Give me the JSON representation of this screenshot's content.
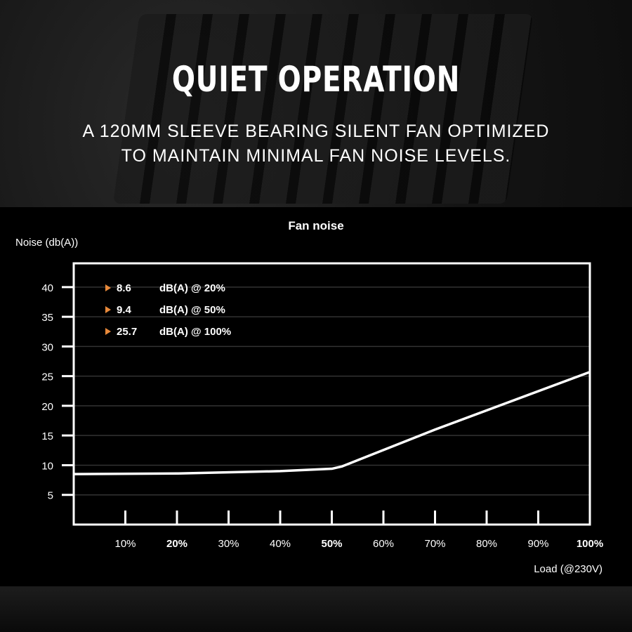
{
  "hero": {
    "title": "QUIET OPERATION",
    "subtitle_line1": "A 120MM SLEEVE BEARING SILENT FAN OPTIMIZED",
    "subtitle_line2": "TO MAINTAIN MINIMAL FAN NOISE LEVELS."
  },
  "chart_data": {
    "type": "line",
    "title": "Fan noise",
    "ylabel": "Noise (db(A))",
    "xlabel": "Load (@230V)",
    "xlim": [
      0,
      100
    ],
    "ylim": [
      0,
      44
    ],
    "grid": true,
    "x_ticks": [
      {
        "value": 10,
        "label": "10%",
        "bold": false
      },
      {
        "value": 20,
        "label": "20%",
        "bold": true
      },
      {
        "value": 30,
        "label": "30%",
        "bold": false
      },
      {
        "value": 40,
        "label": "40%",
        "bold": false
      },
      {
        "value": 50,
        "label": "50%",
        "bold": true
      },
      {
        "value": 60,
        "label": "60%",
        "bold": false
      },
      {
        "value": 70,
        "label": "70%",
        "bold": false
      },
      {
        "value": 80,
        "label": "80%",
        "bold": false
      },
      {
        "value": 90,
        "label": "90%",
        "bold": false
      },
      {
        "value": 100,
        "label": "100%",
        "bold": true
      }
    ],
    "y_ticks": [
      {
        "value": 5,
        "label": "5"
      },
      {
        "value": 10,
        "label": "10"
      },
      {
        "value": 15,
        "label": "15"
      },
      {
        "value": 20,
        "label": "20"
      },
      {
        "value": 25,
        "label": "25"
      },
      {
        "value": 30,
        "label": "30"
      },
      {
        "value": 35,
        "label": "35"
      },
      {
        "value": 40,
        "label": "40"
      }
    ],
    "series": [
      {
        "x": [
          0,
          20,
          40,
          50,
          52,
          70,
          100
        ],
        "y": [
          8.5,
          8.6,
          9.0,
          9.4,
          9.8,
          16.0,
          25.7
        ],
        "color": "#ffffff"
      }
    ],
    "annotations": [
      {
        "value": "8.6",
        "text": "dB(A) @ 20%"
      },
      {
        "value": "9.4",
        "text": "dB(A) @ 50%"
      },
      {
        "value": "25.7",
        "text": "dB(A) @ 100%"
      }
    ],
    "annotation_marker_color": "#e8893a"
  }
}
